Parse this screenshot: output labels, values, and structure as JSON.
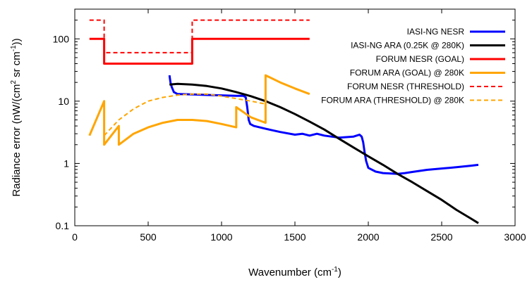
{
  "chart_data": {
    "type": "line",
    "xlabel": "Wavenumber (cm⁻¹)",
    "xlabel_main": "Wavenumber (cm",
    "xlabel_sup": "-1",
    "xlabel_end": ")",
    "ylabel": "Radiance error (nW/(cm² sr cm⁻¹))",
    "ylabel_main": "Radiance error (nW/(cm",
    "ylabel_sup1": "2",
    "ylabel_mid": " sr cm",
    "ylabel_sup2": "-1",
    "ylabel_end": "))",
    "xlim": [
      0,
      3000
    ],
    "ylim": [
      0.1,
      300
    ],
    "yscale": "log",
    "grid": false,
    "legend_position": "top-right",
    "x_ticks": [
      0,
      500,
      1000,
      1500,
      2000,
      2500,
      3000
    ],
    "x_tick_labels": [
      "0",
      "500",
      "1000",
      "1500",
      "2000",
      "2500",
      "3000"
    ],
    "y_ticks": [
      0.1,
      1,
      10,
      100
    ],
    "y_tick_labels": [
      "0.1",
      "1",
      "10",
      "100"
    ],
    "series": [
      {
        "name": "IASI-NG NESR",
        "color": "#0000ff",
        "dash": "solid",
        "points": [
          [
            645,
            26
          ],
          [
            652,
            20
          ],
          [
            660,
            17
          ],
          [
            675,
            14
          ],
          [
            700,
            13
          ],
          [
            800,
            12.8
          ],
          [
            900,
            12.6
          ],
          [
            1000,
            12.4
          ],
          [
            1100,
            12.2
          ],
          [
            1150,
            12.2
          ],
          [
            1165,
            11.5
          ],
          [
            1175,
            8
          ],
          [
            1185,
            5
          ],
          [
            1195,
            4.3
          ],
          [
            1220,
            4
          ],
          [
            1300,
            3.6
          ],
          [
            1400,
            3.2
          ],
          [
            1500,
            2.9
          ],
          [
            1550,
            3
          ],
          [
            1600,
            2.8
          ],
          [
            1650,
            3
          ],
          [
            1700,
            2.8
          ],
          [
            1800,
            2.6
          ],
          [
            1900,
            2.7
          ],
          [
            1940,
            2.9
          ],
          [
            1955,
            2.7
          ],
          [
            1965,
            2.2
          ],
          [
            1975,
            1.5
          ],
          [
            1985,
            1.1
          ],
          [
            2000,
            0.85
          ],
          [
            2050,
            0.74
          ],
          [
            2100,
            0.7
          ],
          [
            2200,
            0.68
          ],
          [
            2250,
            0.7
          ],
          [
            2300,
            0.73
          ],
          [
            2400,
            0.79
          ],
          [
            2500,
            0.83
          ],
          [
            2600,
            0.87
          ],
          [
            2700,
            0.92
          ],
          [
            2750,
            0.95
          ]
        ]
      },
      {
        "name": "IASI-NG ARA (0.25K @ 280K)",
        "color": "#000000",
        "dash": "solid",
        "points": [
          [
            645,
            18.5
          ],
          [
            700,
            19
          ],
          [
            800,
            18.5
          ],
          [
            900,
            17.5
          ],
          [
            1000,
            16
          ],
          [
            1100,
            14
          ],
          [
            1200,
            12
          ],
          [
            1300,
            10
          ],
          [
            1400,
            8
          ],
          [
            1500,
            6.2
          ],
          [
            1600,
            4.7
          ],
          [
            1700,
            3.5
          ],
          [
            1800,
            2.5
          ],
          [
            1900,
            1.8
          ],
          [
            2000,
            1.3
          ],
          [
            2100,
            0.95
          ],
          [
            2200,
            0.68
          ],
          [
            2300,
            0.5
          ],
          [
            2400,
            0.36
          ],
          [
            2500,
            0.26
          ],
          [
            2600,
            0.18
          ],
          [
            2700,
            0.13
          ],
          [
            2750,
            0.11
          ]
        ]
      },
      {
        "name": "FORUM NESR (GOAL)",
        "color": "#ff0000",
        "dash": "solid",
        "points": [
          [
            100,
            100
          ],
          [
            200,
            100
          ],
          [
            200,
            40
          ],
          [
            800,
            40
          ],
          [
            800,
            100
          ],
          [
            1600,
            100
          ]
        ]
      },
      {
        "name": "FORUM ARA (GOAL) @ 280K",
        "color": "#ffa500",
        "dash": "solid",
        "points": [
          [
            100,
            2.8
          ],
          [
            200,
            10
          ],
          [
            200,
            2
          ],
          [
            300,
            4
          ],
          [
            300,
            2
          ],
          [
            400,
            3
          ],
          [
            500,
            3.8
          ],
          [
            600,
            4.5
          ],
          [
            700,
            5
          ],
          [
            800,
            5
          ],
          [
            900,
            4.8
          ],
          [
            1000,
            4.3
          ],
          [
            1100,
            3.8
          ],
          [
            1100,
            8
          ],
          [
            1200,
            5.5
          ],
          [
            1300,
            4.5
          ],
          [
            1300,
            26
          ],
          [
            1400,
            20
          ],
          [
            1500,
            16
          ],
          [
            1600,
            13
          ]
        ]
      },
      {
        "name": "FORUM NESR (THRESHOLD)",
        "color": "#ff0000",
        "dash": "dashed",
        "points": [
          [
            100,
            200
          ],
          [
            200,
            200
          ],
          [
            200,
            60
          ],
          [
            800,
            60
          ],
          [
            800,
            200
          ],
          [
            1600,
            200
          ]
        ]
      },
      {
        "name": "FORUM ARA (THRESHOLD) @ 280K",
        "color": "#ffa500",
        "dash": "dashed",
        "points": [
          [
            200,
            2.8
          ],
          [
            300,
            5
          ],
          [
            400,
            7.5
          ],
          [
            500,
            10
          ],
          [
            600,
            11.5
          ],
          [
            700,
            12.5
          ],
          [
            800,
            13
          ],
          [
            900,
            13
          ],
          [
            1000,
            12
          ],
          [
            1100,
            11
          ],
          [
            1200,
            10
          ],
          [
            1300,
            9
          ],
          [
            1300,
            14
          ]
        ]
      }
    ]
  }
}
